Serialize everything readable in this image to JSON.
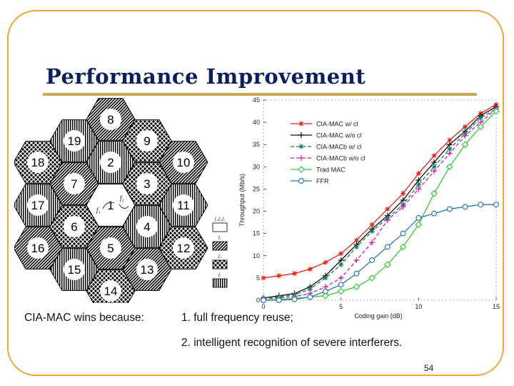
{
  "slide": {
    "title": "Performance Improvement",
    "caption_lead": "CIA-MAC wins because:",
    "reason_1": "1. full frequency reuse;",
    "reason_2": "2. intelligent recognition of severe interferers.",
    "page_number": "54"
  },
  "diagram": {
    "cells": [
      {
        "id": "8",
        "pattern": "hatch-dense"
      },
      {
        "id": "19",
        "pattern": "vertical"
      },
      {
        "id": "9",
        "pattern": "crosshatch"
      },
      {
        "id": "18",
        "pattern": "crosshatch"
      },
      {
        "id": "2",
        "pattern": "vertical"
      },
      {
        "id": "10",
        "pattern": "hatch-dense"
      },
      {
        "id": "7",
        "pattern": "hatch-dense"
      },
      {
        "id": "3",
        "pattern": "crosshatch"
      },
      {
        "id": "17",
        "pattern": "vertical"
      },
      {
        "id": "1",
        "pattern": "blank"
      },
      {
        "id": "11",
        "pattern": "vertical"
      },
      {
        "id": "6",
        "pattern": "crosshatch"
      },
      {
        "id": "4",
        "pattern": "vertical"
      },
      {
        "id": "16",
        "pattern": "hatch-dense"
      },
      {
        "id": "5",
        "pattern": "hatch-dense"
      },
      {
        "id": "12",
        "pattern": "crosshatch"
      },
      {
        "id": "15",
        "pattern": "vertical"
      },
      {
        "id": "13",
        "pattern": "hatch-dense"
      },
      {
        "id": "14",
        "pattern": "crosshatch"
      }
    ],
    "legend": [
      {
        "label": "f₁,f₂,f₃",
        "pattern": "blank"
      },
      {
        "label": "f₁",
        "pattern": "hatch-dense"
      },
      {
        "label": "f₂",
        "pattern": "crosshatch"
      },
      {
        "label": "f₃",
        "pattern": "vertical"
      }
    ],
    "center_labels": [
      "f₁",
      "f₂"
    ]
  },
  "chart_data": {
    "type": "line",
    "xlabel": "Coding gain (dB)",
    "ylabel": "Throughput (Mb/s)",
    "xlim": [
      0,
      15
    ],
    "ylim": [
      0,
      45
    ],
    "xticks": [
      "0",
      "5",
      "10",
      "15"
    ],
    "yticks": [
      "0",
      "5",
      "10",
      "15",
      "20",
      "25",
      "30",
      "35",
      "40",
      "45"
    ],
    "legend_position": "top-right",
    "series": [
      {
        "name": "CIA-MAC w/ cl",
        "color": "#e2231a",
        "marker": "asterisk",
        "dash": "",
        "x": [
          0,
          1,
          2,
          3,
          4,
          5,
          6,
          7,
          8,
          9,
          10,
          11,
          12,
          13,
          14,
          15
        ],
        "y": [
          5,
          5.5,
          6,
          7,
          8.5,
          10.5,
          13.5,
          17,
          20.5,
          24,
          28.5,
          32.5,
          36,
          39,
          42,
          44
        ]
      },
      {
        "name": "CIA-MAC w/o cl",
        "color": "#111111",
        "marker": "plus",
        "dash": "",
        "x": [
          0,
          1,
          2,
          3,
          4,
          5,
          6,
          7,
          8,
          9,
          10,
          11,
          12,
          13,
          14,
          15
        ],
        "y": [
          0.5,
          1,
          1.5,
          3,
          5.5,
          9,
          12.5,
          16,
          19,
          22.5,
          27,
          31,
          35,
          38,
          41.5,
          43.5
        ]
      },
      {
        "name": "CIA-MACb w/ cl",
        "color": "#117a65",
        "marker": "asterisk",
        "dash": "5,3",
        "x": [
          0,
          1,
          2,
          3,
          4,
          5,
          6,
          7,
          8,
          9,
          10,
          11,
          12,
          13,
          14,
          15
        ],
        "y": [
          0.5,
          0.7,
          1.2,
          2.5,
          5,
          8,
          12,
          15.5,
          18.5,
          21.5,
          26,
          30,
          34,
          37.5,
          41,
          43
        ]
      },
      {
        "name": "CIA-MACb w/o cl",
        "color": "#cc1fa8",
        "marker": "plus",
        "dash": "5,3",
        "x": [
          0,
          1,
          2,
          3,
          4,
          5,
          6,
          7,
          8,
          9,
          10,
          11,
          12,
          13,
          14,
          15
        ],
        "y": [
          0.3,
          0.5,
          0.8,
          1.5,
          3,
          5,
          9,
          13,
          18,
          21,
          25,
          29,
          33,
          37,
          40,
          43
        ]
      },
      {
        "name": "Trad MAC",
        "color": "#38c93a",
        "marker": "diamond",
        "dash": "",
        "x": [
          0,
          1,
          2,
          3,
          4,
          5,
          6,
          7,
          8,
          9,
          10,
          11,
          12,
          13,
          14,
          15
        ],
        "y": [
          0,
          0.2,
          0.4,
          0.7,
          1,
          2,
          3,
          5,
          8,
          12,
          17,
          24,
          30,
          35,
          39,
          42.5
        ]
      },
      {
        "name": "FFR",
        "color": "#2f76b8",
        "marker": "circle",
        "dash": "",
        "x": [
          0,
          1,
          2,
          3,
          4,
          5,
          6,
          7,
          8,
          9,
          10,
          11,
          12,
          13,
          14,
          15
        ],
        "y": [
          0,
          0,
          0.2,
          0.7,
          2,
          3.5,
          6,
          9,
          12,
          15,
          18.5,
          19.5,
          20.5,
          21,
          21.5,
          21.5
        ]
      }
    ]
  }
}
